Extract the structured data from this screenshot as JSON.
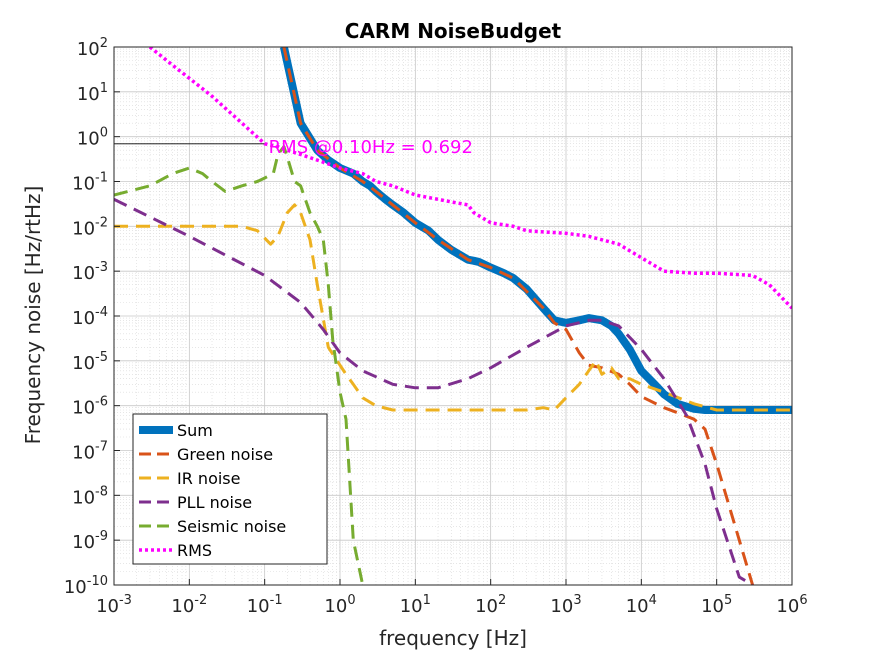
{
  "chart_data": {
    "type": "line",
    "title": "CARM NoiseBudget",
    "xlabel": "frequency [Hz]",
    "ylabel": "Frequency noise [Hz/rtHz]",
    "xscale": "log",
    "yscale": "log",
    "xlim": [
      0.001,
      1000000
    ],
    "ylim": [
      1e-10,
      100
    ],
    "x_tick_labels": [
      {
        "base": "10",
        "exp": "-3"
      },
      {
        "base": "10",
        "exp": "-2"
      },
      {
        "base": "10",
        "exp": "-1"
      },
      {
        "base": "10",
        "exp": "0"
      },
      {
        "base": "10",
        "exp": "1"
      },
      {
        "base": "10",
        "exp": "2"
      },
      {
        "base": "10",
        "exp": "3"
      },
      {
        "base": "10",
        "exp": "4"
      },
      {
        "base": "10",
        "exp": "5"
      },
      {
        "base": "10",
        "exp": "6"
      }
    ],
    "y_tick_labels": [
      {
        "base": "10",
        "exp": "-10"
      },
      {
        "base": "10",
        "exp": "-9"
      },
      {
        "base": "10",
        "exp": "-8"
      },
      {
        "base": "10",
        "exp": "-7"
      },
      {
        "base": "10",
        "exp": "-6"
      },
      {
        "base": "10",
        "exp": "-5"
      },
      {
        "base": "10",
        "exp": "-4"
      },
      {
        "base": "10",
        "exp": "-3"
      },
      {
        "base": "10",
        "exp": "-2"
      },
      {
        "base": "10",
        "exp": "-1"
      },
      {
        "base": "10",
        "exp": "0"
      },
      {
        "base": "10",
        "exp": "1"
      },
      {
        "base": "10",
        "exp": "2"
      }
    ],
    "grid": true,
    "minor_grid": true,
    "legend_position": "bottom-left",
    "annotation": {
      "text": "RMS @0.10Hz = 0.692",
      "x": 0.1,
      "y": 0.692,
      "color": "#ff00ff",
      "marker_line_from_x": 0.001
    },
    "series": [
      {
        "name": "Sum",
        "color": "#0072bd",
        "style": "solid",
        "width": "thick",
        "x": [
          0.18,
          0.3,
          0.5,
          0.7,
          1,
          1.5,
          2,
          2.5,
          3,
          4,
          5,
          7,
          10,
          15,
          20,
          30,
          50,
          60,
          70,
          100,
          150,
          200,
          300,
          500,
          700,
          1000,
          1500,
          2000,
          3000,
          4000,
          5000,
          7000,
          10000,
          15000,
          20000,
          30000,
          50000,
          70000,
          100000,
          200000,
          500000,
          1000000
        ],
        "y": [
          100,
          2,
          0.5,
          0.3,
          0.2,
          0.15,
          0.1,
          0.08,
          0.06,
          0.04,
          0.03,
          0.02,
          0.012,
          0.008,
          0.005,
          0.003,
          0.0018,
          0.0017,
          0.0016,
          0.0012,
          0.0009,
          0.0007,
          0.0004,
          0.00015,
          8e-05,
          7e-05,
          8e-05,
          9e-05,
          8e-05,
          6e-05,
          4e-05,
          1.8e-05,
          6e-06,
          3e-06,
          1.8e-06,
          1.1e-06,
          8.5e-07,
          8e-07,
          8e-07,
          8e-07,
          8e-07,
          8e-07
        ]
      },
      {
        "name": "Green noise",
        "color": "#d95319",
        "style": "dashed",
        "x": [
          0.18,
          0.3,
          0.5,
          1,
          2,
          3,
          5,
          10,
          20,
          50,
          100,
          200,
          500,
          700,
          1000,
          1500,
          2000,
          3000,
          5000,
          7000,
          10000,
          20000,
          30000,
          50000,
          70000,
          100000,
          200000,
          300000
        ],
        "y": [
          100,
          2,
          0.5,
          0.2,
          0.1,
          0.06,
          0.03,
          0.012,
          0.005,
          0.0018,
          0.0012,
          0.0007,
          0.00015,
          7e-05,
          5e-05,
          1.5e-05,
          8e-06,
          7e-06,
          5e-06,
          3e-06,
          1.6e-06,
          9e-07,
          7e-07,
          5e-07,
          3e-07,
          5e-08,
          1e-09,
          1e-10
        ]
      },
      {
        "name": "IR noise",
        "color": "#edb120",
        "style": "dashed",
        "x": [
          0.001,
          0.003,
          0.01,
          0.03,
          0.05,
          0.08,
          0.12,
          0.15,
          0.2,
          0.25,
          0.3,
          0.4,
          0.5,
          0.7,
          1,
          1.2,
          1.5,
          2,
          3,
          5,
          10,
          30,
          100,
          300,
          500,
          700,
          1000,
          1500,
          2000,
          2500,
          3000,
          4000,
          5000,
          7000,
          10000,
          20000,
          50000,
          100000,
          1000000
        ],
        "y": [
          0.01,
          0.01,
          0.01,
          0.01,
          0.01,
          0.008,
          0.004,
          0.006,
          0.02,
          0.03,
          0.02,
          0.005,
          0.0005,
          2e-05,
          8e-06,
          5e-06,
          3e-06,
          1.5e-06,
          1e-06,
          8e-07,
          8e-07,
          8e-07,
          8e-07,
          8e-07,
          9e-07,
          8e-07,
          1.5e-06,
          3e-06,
          6e-06,
          1e-05,
          5e-06,
          7e-06,
          4e-06,
          4e-06,
          3e-06,
          2e-06,
          1.1e-06,
          8e-07,
          8e-07
        ]
      },
      {
        "name": "PLL noise",
        "color": "#7e2f8e",
        "style": "dashed",
        "x": [
          0.001,
          0.01,
          0.1,
          0.3,
          0.6,
          1,
          2,
          5,
          10,
          20,
          50,
          100,
          300,
          1000,
          2000,
          3000,
          5000,
          10000,
          20000,
          40000,
          70000,
          100000,
          200000,
          300000
        ],
        "y": [
          0.04,
          0.006,
          0.0008,
          0.0002,
          5e-05,
          1.5e-05,
          6e-06,
          3e-06,
          2.5e-06,
          2.5e-06,
          4e-06,
          7e-06,
          2e-05,
          6e-05,
          8e-05,
          8e-05,
          6e-05,
          1.8e-05,
          4e-06,
          6e-07,
          5e-08,
          5e-09,
          1.5e-10,
          1e-10
        ]
      },
      {
        "name": "Seismic noise",
        "color": "#77ac30",
        "style": "dashed",
        "x": [
          0.001,
          0.003,
          0.006,
          0.01,
          0.015,
          0.02,
          0.03,
          0.05,
          0.08,
          0.1,
          0.13,
          0.15,
          0.18,
          0.2,
          0.25,
          0.3,
          0.4,
          0.5,
          0.6,
          0.7,
          0.8,
          1,
          1.2,
          1.5,
          2
        ],
        "y": [
          0.05,
          0.08,
          0.15,
          0.2,
          0.15,
          0.1,
          0.06,
          0.08,
          0.1,
          0.12,
          0.15,
          0.4,
          0.6,
          0.35,
          0.1,
          0.08,
          0.02,
          0.01,
          0.005,
          0.0005,
          3e-05,
          2e-06,
          5e-07,
          1e-09,
          1e-10
        ]
      },
      {
        "name": "RMS",
        "color": "#ff00ff",
        "style": "dotted",
        "x": [
          0.003,
          0.005,
          0.01,
          0.02,
          0.05,
          0.1,
          0.15,
          0.2,
          0.3,
          0.5,
          1,
          2,
          3,
          5,
          10,
          20,
          30,
          50,
          60,
          100,
          200,
          300,
          500,
          1000,
          2000,
          5000,
          10000,
          20000,
          50000,
          100000,
          300000,
          500000,
          1000000
        ],
        "y": [
          100,
          50,
          20,
          8,
          2,
          0.692,
          0.6,
          0.5,
          0.4,
          0.3,
          0.2,
          0.15,
          0.1,
          0.08,
          0.05,
          0.04,
          0.035,
          0.03,
          0.02,
          0.012,
          0.01,
          0.008,
          0.0075,
          0.007,
          0.006,
          0.004,
          0.002,
          0.001,
          0.0009,
          0.0009,
          0.0008,
          0.0005,
          0.00015
        ]
      }
    ]
  }
}
